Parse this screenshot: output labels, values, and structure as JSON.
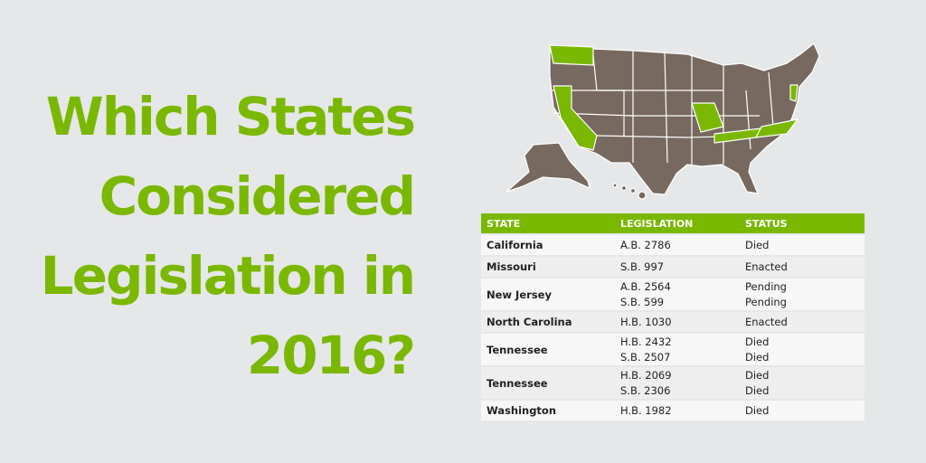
{
  "title": [
    "Which States",
    "Considered",
    "Legislation in",
    "2016?"
  ],
  "table": {
    "header": [
      "STATE",
      "LEGISLATION",
      "STATUS"
    ],
    "rows": [
      {
        "state": "California",
        "legislation": [
          "A.B. 2786"
        ],
        "status": [
          "Died"
        ]
      },
      {
        "state": "Missouri",
        "legislation": [
          "S.B. 997"
        ],
        "status": [
          "Enacted"
        ]
      },
      {
        "state": "New Jersey",
        "legislation": [
          "A.B. 2564",
          "S.B. 599"
        ],
        "status": [
          "Pending",
          "Pending"
        ]
      },
      {
        "state": "North Carolina",
        "legislation": [
          "H.B. 1030"
        ],
        "status": [
          "Enacted"
        ]
      },
      {
        "state": "Tennessee",
        "legislation": [
          "H.B. 2432",
          "S.B. 2507"
        ],
        "status": [
          "Died",
          "Died"
        ]
      },
      {
        "state": "Tennessee",
        "legislation": [
          "H.B. 2069",
          "S.B. 2306"
        ],
        "status": [
          "Died",
          "Died"
        ]
      },
      {
        "state": "Washington",
        "legislation": [
          "H.B. 1982"
        ],
        "status": [
          "Died"
        ]
      }
    ]
  }
}
